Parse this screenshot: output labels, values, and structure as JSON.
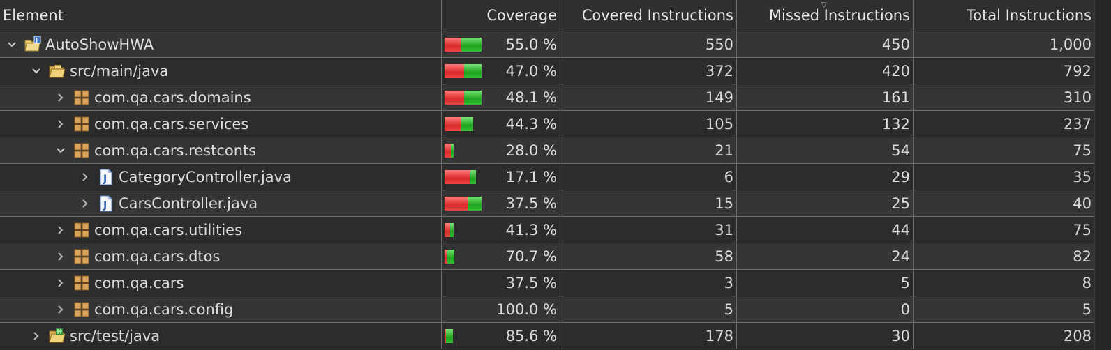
{
  "columns": [
    "Element",
    "Coverage",
    "Covered Instructions",
    "Missed Instructions",
    "Total Instructions"
  ],
  "colors": {
    "covered": "#2eb82e",
    "missed": "#e53a3a"
  },
  "rows": [
    {
      "indent": 0,
      "expanded": true,
      "icon": "project-folder-icon",
      "name": "AutoShowHWA",
      "coverage": "55.0 %",
      "covered": "550",
      "missed": "450",
      "total": "1,000",
      "bar": {
        "missed_fraction": 0.45,
        "total_fraction": 1.0
      }
    },
    {
      "indent": 1,
      "expanded": true,
      "icon": "source-folder-icon",
      "name": "src/main/java",
      "coverage": "47.0 %",
      "covered": "372",
      "missed": "420",
      "total": "792",
      "bar": {
        "missed_fraction": 0.53,
        "total_fraction": 1.0
      }
    },
    {
      "indent": 2,
      "expanded": false,
      "icon": "package-icon",
      "name": "com.qa.cars.domains",
      "coverage": "48.1 %",
      "covered": "149",
      "missed": "161",
      "total": "310",
      "bar": {
        "missed_fraction": 0.519,
        "total_fraction": 1.0
      }
    },
    {
      "indent": 2,
      "expanded": false,
      "icon": "package-icon",
      "name": "com.qa.cars.services",
      "coverage": "44.3 %",
      "covered": "105",
      "missed": "132",
      "total": "237",
      "bar": {
        "missed_fraction": 0.557,
        "total_fraction": 0.77
      }
    },
    {
      "indent": 2,
      "expanded": true,
      "icon": "package-icon",
      "name": "com.qa.cars.restconts",
      "coverage": "28.0 %",
      "covered": "21",
      "missed": "54",
      "total": "75",
      "bar": {
        "missed_fraction": 0.72,
        "total_fraction": 0.24
      }
    },
    {
      "indent": 3,
      "expanded": false,
      "icon": "java-file-icon",
      "name": "CategoryController.java",
      "coverage": "17.1 %",
      "covered": "6",
      "missed": "29",
      "total": "35",
      "bar": {
        "missed_fraction": 0.829,
        "total_fraction": 0.85
      }
    },
    {
      "indent": 3,
      "expanded": false,
      "icon": "java-file-icon",
      "name": "CarsController.java",
      "coverage": "37.5 %",
      "covered": "15",
      "missed": "25",
      "total": "40",
      "bar": {
        "missed_fraction": 0.625,
        "total_fraction": 1.0
      }
    },
    {
      "indent": 2,
      "expanded": false,
      "icon": "package-icon",
      "name": "com.qa.cars.utilities",
      "coverage": "41.3 %",
      "covered": "31",
      "missed": "44",
      "total": "75",
      "bar": {
        "missed_fraction": 0.587,
        "total_fraction": 0.24
      }
    },
    {
      "indent": 2,
      "expanded": false,
      "icon": "package-icon",
      "name": "com.qa.cars.dtos",
      "coverage": "70.7 %",
      "covered": "58",
      "missed": "24",
      "total": "82",
      "bar": {
        "missed_fraction": 0.293,
        "total_fraction": 0.26
      }
    },
    {
      "indent": 2,
      "expanded": false,
      "icon": "package-icon",
      "name": "com.qa.cars",
      "coverage": "37.5 %",
      "covered": "3",
      "missed": "5",
      "total": "8",
      "bar": null
    },
    {
      "indent": 2,
      "expanded": false,
      "icon": "package-icon",
      "name": "com.qa.cars.config",
      "coverage": "100.0 %",
      "covered": "5",
      "missed": "0",
      "total": "5",
      "bar": null
    },
    {
      "indent": 1,
      "expanded": false,
      "icon": "test-folder-icon",
      "name": "src/test/java",
      "coverage": "85.6 %",
      "covered": "178",
      "missed": "30",
      "total": "208",
      "bar": {
        "missed_fraction": 0.144,
        "total_fraction": 0.23
      }
    }
  ]
}
